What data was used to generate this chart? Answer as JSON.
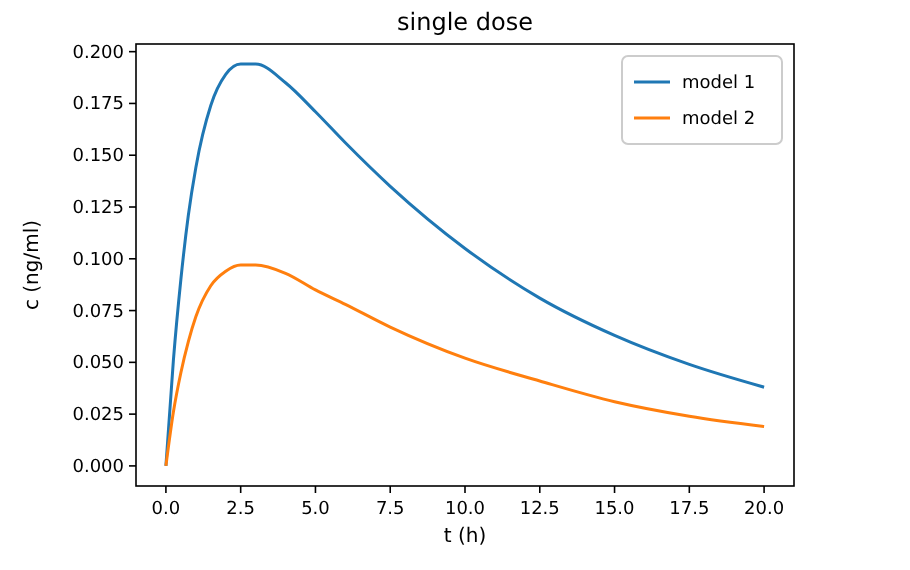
{
  "chart_data": {
    "type": "line",
    "title": "single dose",
    "xlabel": "t (h)",
    "ylabel": "c (ng/ml)",
    "x": [
      0,
      0.25,
      0.5,
      0.75,
      1,
      1.5,
      2,
      2.5,
      3,
      4,
      5,
      6,
      7.5,
      10,
      12.5,
      15,
      17.5,
      20
    ],
    "series": [
      {
        "name": "model 1",
        "color": "#1f77b4",
        "values": [
          0,
          0.051,
          0.09,
          0.121,
          0.144,
          0.174,
          0.189,
          0.194,
          0.194,
          0.185,
          0.171,
          0.156,
          0.135,
          0.105,
          0.081,
          0.063,
          0.049,
          0.038
        ]
      },
      {
        "name": "model 2",
        "color": "#ff7f0e",
        "values": [
          0,
          0.026,
          0.045,
          0.06,
          0.072,
          0.087,
          0.094,
          0.097,
          0.097,
          0.093,
          0.085,
          0.078,
          0.067,
          0.052,
          0.041,
          0.031,
          0.024,
          0.019
        ]
      }
    ],
    "xlim": [
      -1,
      21
    ],
    "xticks": [
      {
        "value": 0,
        "label": "0.0"
      },
      {
        "value": 2.5,
        "label": "2.5"
      },
      {
        "value": 5,
        "label": "5.0"
      },
      {
        "value": 7.5,
        "label": "7.5"
      },
      {
        "value": 10,
        "label": "10.0"
      },
      {
        "value": 12.5,
        "label": "12.5"
      },
      {
        "value": 15,
        "label": "15.0"
      },
      {
        "value": 17.5,
        "label": "17.5"
      },
      {
        "value": 20,
        "label": "20.0"
      }
    ],
    "ylim": [
      -0.0097,
      0.2037
    ],
    "yticks": [
      {
        "value": 0,
        "label": "0.000"
      },
      {
        "value": 0.025,
        "label": "0.025"
      },
      {
        "value": 0.05,
        "label": "0.050"
      },
      {
        "value": 0.075,
        "label": "0.075"
      },
      {
        "value": 0.1,
        "label": "0.100"
      },
      {
        "value": 0.125,
        "label": "0.125"
      },
      {
        "value": 0.15,
        "label": "0.150"
      },
      {
        "value": 0.175,
        "label": "0.175"
      },
      {
        "value": 0.2,
        "label": "0.200"
      }
    ],
    "legend": "top right",
    "grid": false
  }
}
